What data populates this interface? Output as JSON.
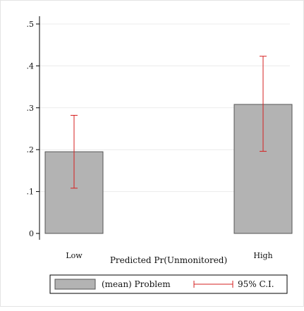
{
  "chart_data": {
    "type": "bar",
    "categories": [
      "Low",
      "High"
    ],
    "series": [
      {
        "name": "(mean) Problem",
        "values": [
          0.195,
          0.308
        ],
        "color": "#b3b3b3"
      }
    ],
    "error_bars": {
      "name": "95% C.I.",
      "color": "#d62020",
      "lower": [
        0.108,
        0.196
      ],
      "upper": [
        0.282,
        0.423
      ]
    },
    "title": "",
    "xlabel": "Predicted Pr(Unmonitored)",
    "ylabel": "",
    "ylim": [
      0,
      0.5
    ],
    "yticks": [
      0,
      0.1,
      0.2,
      0.3,
      0.4,
      0.5
    ],
    "ytick_labels": [
      "0",
      ".1",
      ".2",
      ".3",
      ".4",
      ".5"
    ],
    "grid": true,
    "legend_position": "bottom"
  }
}
